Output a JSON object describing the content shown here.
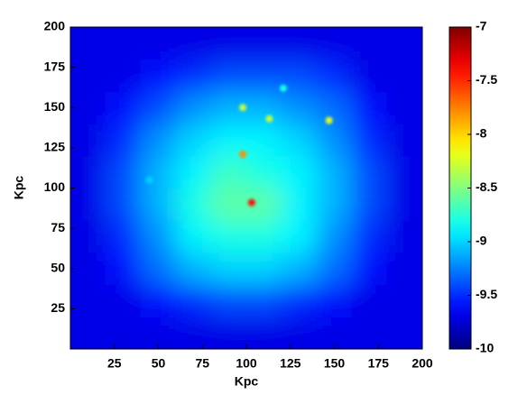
{
  "chart_data": {
    "type": "heatmap",
    "xlabel": "Kpc",
    "ylabel": "Kpc",
    "xlim": [
      0,
      200
    ],
    "ylim": [
      0,
      200
    ],
    "xticks": [
      25,
      50,
      75,
      100,
      125,
      150,
      175,
      200
    ],
    "yticks": [
      25,
      50,
      75,
      100,
      125,
      150,
      175,
      200
    ],
    "colormap": "jet",
    "clim": [
      -10,
      -7
    ],
    "cticks": [
      -10,
      -9.5,
      -9,
      -8.5,
      -8,
      -7.5,
      -7
    ],
    "x": [
      10,
      30,
      50,
      70,
      90,
      110,
      130,
      150,
      170,
      190
    ],
    "y": [
      10,
      30,
      50,
      70,
      90,
      110,
      130,
      150,
      170,
      190
    ],
    "z": [
      [
        -9.7,
        -9.7,
        -9.7,
        -9.7,
        -9.7,
        -9.7,
        -9.7,
        -9.7,
        -9.7,
        -9.7
      ],
      [
        -9.7,
        -9.7,
        -9.6,
        -9.5,
        -9.4,
        -9.4,
        -9.5,
        -9.6,
        -9.7,
        -9.7
      ],
      [
        -9.7,
        -9.6,
        -9.3,
        -9.1,
        -9.0,
        -9.0,
        -9.1,
        -9.3,
        -9.6,
        -9.7
      ],
      [
        -9.7,
        -9.5,
        -9.2,
        -8.9,
        -8.8,
        -8.8,
        -8.9,
        -9.2,
        -9.5,
        -9.7
      ],
      [
        -9.7,
        -9.4,
        -9.1,
        -8.8,
        -8.6,
        -8.6,
        -8.9,
        -9.1,
        -9.4,
        -9.7
      ],
      [
        -9.7,
        -9.4,
        -9.1,
        -8.9,
        -8.7,
        -8.8,
        -8.9,
        -9.1,
        -9.4,
        -9.7
      ],
      [
        -9.7,
        -9.5,
        -9.2,
        -9.0,
        -8.9,
        -8.9,
        -9.0,
        -9.2,
        -9.5,
        -9.7
      ],
      [
        -9.7,
        -9.6,
        -9.4,
        -9.2,
        -9.1,
        -9.1,
        -9.2,
        -9.3,
        -9.6,
        -9.7
      ],
      [
        -9.7,
        -9.7,
        -9.6,
        -9.5,
        -9.4,
        -9.4,
        -9.4,
        -9.5,
        -9.7,
        -9.7
      ],
      [
        -9.7,
        -9.7,
        -9.7,
        -9.7,
        -9.7,
        -9.7,
        -9.7,
        -9.7,
        -9.7,
        -9.7
      ]
    ],
    "points": {
      "x": [
        103,
        98,
        98,
        113,
        121,
        147,
        45
      ],
      "y": [
        91,
        121,
        150,
        143,
        162,
        142,
        105
      ],
      "values": [
        -7.4,
        -7.8,
        -8.3,
        -8.3,
        -8.8,
        -8.2,
        -9.0
      ]
    }
  }
}
